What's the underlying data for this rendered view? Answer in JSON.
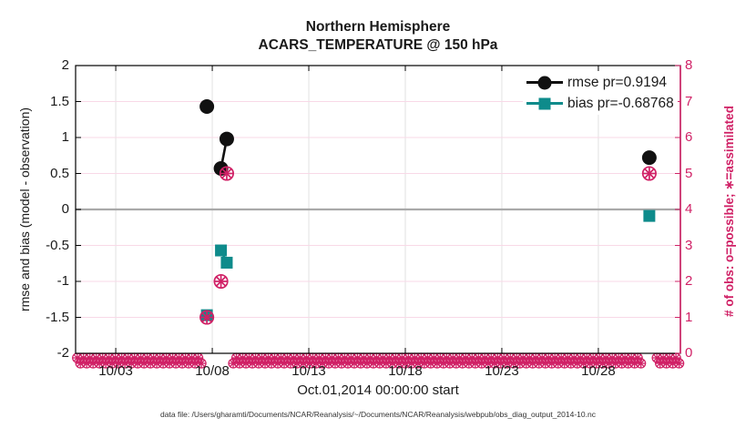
{
  "figure": {
    "footer_caption": "data file: /Users/gharamti/Documents/NCAR/Reanalysis/~/Documents/NCAR/Reanalysis/webpub/obs_diag_output_2014-10.nc"
  },
  "chart_data": {
    "type": "line",
    "title": "Northern Hemisphere",
    "subtitle": "ACARS_TEMPERATURE @ 150 hPa",
    "xlabel": "Oct.01,2014 00:00:00 start",
    "ylabel": "rmse and bias (model - observation)",
    "ylabel_right": "# of obs: o=possible; ∗=assimilated",
    "x_axis": {
      "unit": "day of October 2014",
      "domain": [
        0.92,
        32.25
      ],
      "ticks": [
        {
          "value": 3,
          "label": "10/03"
        },
        {
          "value": 8,
          "label": "10/08"
        },
        {
          "value": 13,
          "label": "10/13"
        },
        {
          "value": 18,
          "label": "10/18"
        },
        {
          "value": 23,
          "label": "10/23"
        },
        {
          "value": 28,
          "label": "10/28"
        }
      ]
    },
    "y_left_axis": {
      "range": [
        -2,
        2
      ],
      "ticks": [
        {
          "value": 2,
          "label": "2"
        },
        {
          "value": 1.5,
          "label": "1.5"
        },
        {
          "value": 1,
          "label": "1"
        },
        {
          "value": 0.5,
          "label": "0.5"
        },
        {
          "value": 0,
          "label": "0"
        },
        {
          "value": -0.5,
          "label": "-0.5"
        },
        {
          "value": -1,
          "label": "-1"
        },
        {
          "value": -1.5,
          "label": "-1.5"
        },
        {
          "value": -2,
          "label": "-2"
        }
      ],
      "zero_line_value": 0
    },
    "y_right_axis": {
      "range": [
        0,
        8
      ],
      "color": "#d02166",
      "ticks": [
        {
          "value": 8,
          "label": "8"
        },
        {
          "value": 7,
          "label": "7"
        },
        {
          "value": 6,
          "label": "6"
        },
        {
          "value": 5,
          "label": "5"
        },
        {
          "value": 4,
          "label": "4"
        },
        {
          "value": 3,
          "label": "3"
        },
        {
          "value": 2,
          "label": "2"
        },
        {
          "value": 1,
          "label": "1"
        },
        {
          "value": 0,
          "label": "0"
        }
      ]
    },
    "legend": {
      "position": "top-right"
    },
    "series": [
      {
        "name": "rmse",
        "legend_label": "rmse pr=0.9194",
        "color": "#111111",
        "marker": "filled-circle",
        "axis": "left",
        "points": [
          {
            "day": 7.72,
            "value": 1.43
          },
          {
            "day": 8.45,
            "value": 0.57
          },
          {
            "day": 8.75,
            "value": 0.98
          },
          {
            "day": 30.64,
            "value": 0.72
          }
        ],
        "connected_segments": [
          [
            1,
            2
          ]
        ]
      },
      {
        "name": "bias",
        "legend_label": "bias pr=-0.68768",
        "color": "#0e8b8b",
        "marker": "filled-square",
        "axis": "left",
        "points": [
          {
            "day": 7.72,
            "value": -1.47
          },
          {
            "day": 8.45,
            "value": -0.57
          },
          {
            "day": 8.75,
            "value": -0.74
          },
          {
            "day": 30.64,
            "value": -0.09
          }
        ],
        "connected_segments": [
          [
            1,
            2
          ]
        ]
      },
      {
        "name": "obs-count-assimilated",
        "color": "#d02166",
        "marker": "circle-asterisk",
        "axis": "right",
        "points": [
          {
            "day": 7.72,
            "value": 1
          },
          {
            "day": 8.45,
            "value": 2
          },
          {
            "day": 8.75,
            "value": 5
          },
          {
            "day": 30.64,
            "value": 5
          }
        ]
      }
    ],
    "zero_count_band": {
      "axis": "right",
      "value": 0,
      "marker": "circle-asterisk",
      "color": "#d02166",
      "marker_spacing_days": 0.33,
      "gaps": [
        [
          7.55,
          8.93
        ],
        [
          30.3,
          30.95
        ]
      ]
    },
    "colors": {
      "accent_pink": "#d02166",
      "grid_pink": "#f8d9e7",
      "grid_gray": "#e2e2e2",
      "zero_line_gray": "#a9a9a9",
      "teal": "#0e8b8b",
      "black": "#111111"
    }
  }
}
